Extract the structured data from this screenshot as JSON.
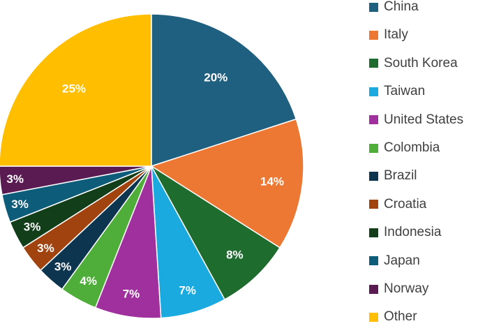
{
  "chart_data": {
    "type": "pie",
    "title": "",
    "start_angle_deg": 0,
    "direction": "clockwise",
    "legend_position": "right",
    "slices": [
      {
        "name": "China",
        "value": 20,
        "label": "20%",
        "color": "#1F5F7F"
      },
      {
        "name": "Italy",
        "value": 14,
        "label": "14%",
        "color": "#ED7833"
      },
      {
        "name": "South Korea",
        "value": 8,
        "label": "8%",
        "color": "#1E6C2E"
      },
      {
        "name": "Taiwan",
        "value": 7,
        "label": "7%",
        "color": "#1AAAE0"
      },
      {
        "name": "United States",
        "value": 7,
        "label": "7%",
        "color": "#A0309E"
      },
      {
        "name": "Colombia",
        "value": 4,
        "label": "4%",
        "color": "#4FAE3A"
      },
      {
        "name": "Brazil",
        "value": 3,
        "label": "3%",
        "color": "#0E3550"
      },
      {
        "name": "Croatia",
        "value": 3,
        "label": "3%",
        "color": "#A1430F"
      },
      {
        "name": "Indonesia",
        "value": 3,
        "label": "3%",
        "color": "#123E19"
      },
      {
        "name": "Japan",
        "value": 3,
        "label": "3%",
        "color": "#0D5C79"
      },
      {
        "name": "Norway",
        "value": 3,
        "label": "3%",
        "color": "#5A1A52"
      },
      {
        "name": "Other",
        "value": 25,
        "label": "25%",
        "color": "#FFBF00"
      }
    ]
  }
}
